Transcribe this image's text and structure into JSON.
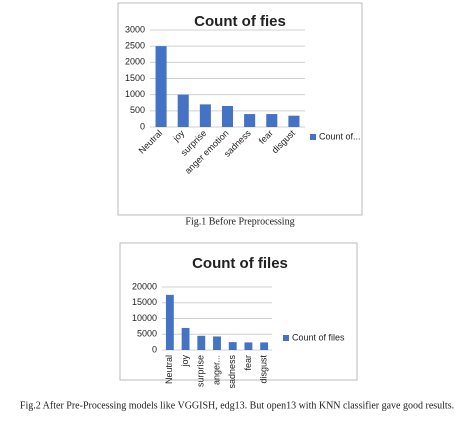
{
  "chart_data": [
    {
      "type": "bar",
      "title": "Count of fies",
      "caption": "Fig.1 Before Preprocessing",
      "categories": [
        "Neutral",
        "joy",
        "surprise",
        "anger emotion",
        "sadness",
        "fear",
        "disgust"
      ],
      "series": [
        {
          "name": "Count of...",
          "color": "#4472c4",
          "values": [
            2500,
            1000,
            700,
            650,
            400,
            400,
            350
          ]
        }
      ],
      "ylim": [
        0,
        3000
      ],
      "yticks": [
        0,
        500,
        1000,
        1500,
        2000,
        2500,
        3000
      ],
      "grid": true,
      "legend": "right"
    },
    {
      "type": "bar",
      "title": "Count of files",
      "caption": "Fig.2 After Pre-Processing models like VGGISH, edg13. But open13 with KNN classifier gave good results.",
      "categories": [
        "Neutral",
        "joy",
        "surprise",
        "anger...",
        "sadness",
        "fear",
        "disgust"
      ],
      "series": [
        {
          "name": "Count of files",
          "color": "#4472c4",
          "values": [
            17500,
            7000,
            4500,
            4300,
            2500,
            2400,
            2400
          ]
        }
      ],
      "ylim": [
        0,
        20000
      ],
      "yticks": [
        0,
        5000,
        10000,
        15000,
        20000
      ],
      "grid": true,
      "legend": "right"
    }
  ]
}
